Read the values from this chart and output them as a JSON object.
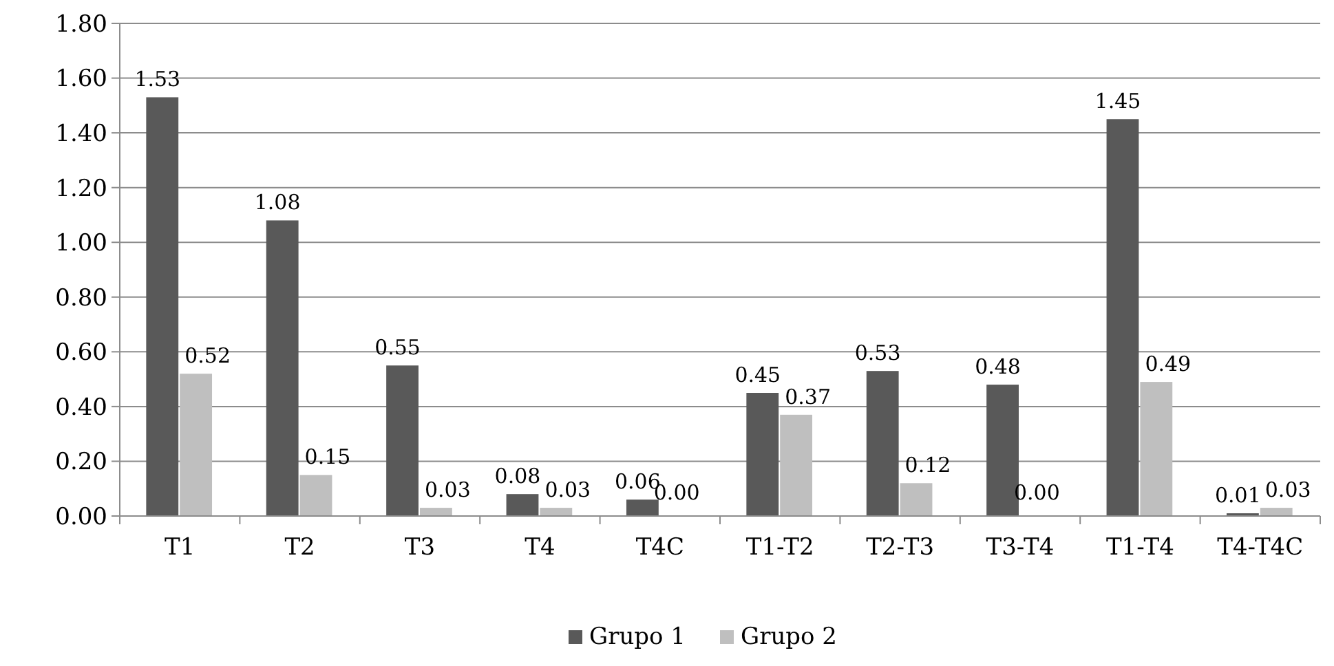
{
  "chart_data": {
    "type": "bar",
    "categories": [
      "T1",
      "T2",
      "T3",
      "T4",
      "T4C",
      "T1-T2",
      "T2-T3",
      "T3-T4",
      "T1-T4",
      "T4-T4C"
    ],
    "series": [
      {
        "name": "Grupo 1",
        "color": "#595959",
        "values": [
          1.53,
          1.08,
          0.55,
          0.08,
          0.06,
          0.45,
          0.53,
          0.48,
          1.45,
          0.01
        ],
        "value_labels": [
          "1.53",
          "1.08",
          "0.55",
          "0.08",
          "0.06",
          "0.45",
          "0.53",
          "0.48",
          "1.45",
          "0.01"
        ]
      },
      {
        "name": "Grupo 2",
        "color": "#bfbfbf",
        "values": [
          0.52,
          0.15,
          0.03,
          0.03,
          0,
          0.37,
          0.12,
          0,
          0.49,
          0.03
        ],
        "value_labels": [
          "0.52",
          "0.15",
          "0.03",
          "0.03",
          "0.00",
          "0.37",
          "0.12",
          "0.00",
          "0.49",
          "0.03"
        ]
      }
    ],
    "ylim": [
      0,
      1.8
    ],
    "yticks": [
      {
        "value": 0,
        "label": "0.00"
      },
      {
        "value": 0.2,
        "label": "0.20"
      },
      {
        "value": 0.4,
        "label": "0.40"
      },
      {
        "value": 0.6,
        "label": "0.60"
      },
      {
        "value": 0.8,
        "label": "0.80"
      },
      {
        "value": 1,
        "label": "1.00"
      },
      {
        "value": 1.2,
        "label": "1.20"
      },
      {
        "value": 1.4,
        "label": "1.40"
      },
      {
        "value": 1.6,
        "label": "1.60"
      },
      {
        "value": 1.8,
        "label": "1.80"
      }
    ],
    "grid": "y",
    "legend": "bottom"
  }
}
